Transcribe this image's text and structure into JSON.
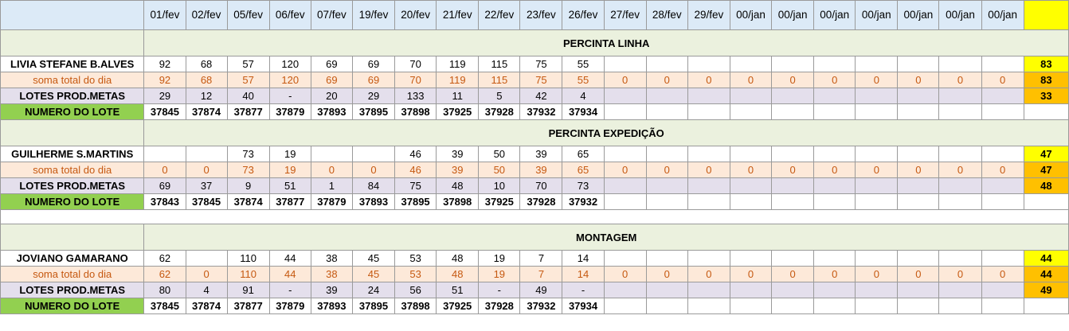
{
  "header": {
    "dates": [
      "01/fev",
      "02/fev",
      "05/fev",
      "06/fev",
      "07/fev",
      "19/fev",
      "20/fev",
      "21/fev",
      "22/fev",
      "23/fev",
      "26/fev",
      "27/fev",
      "28/fev",
      "29/fev",
      "00/jan",
      "00/jan",
      "00/jan",
      "00/jan",
      "00/jan",
      "00/jan",
      "00/jan"
    ]
  },
  "sections": [
    {
      "title": "PERCINTA LINHA",
      "person": {
        "name": "LIVIA STEFANE B.ALVES",
        "values": [
          "92",
          "68",
          "57",
          "120",
          "69",
          "69",
          "70",
          "119",
          "115",
          "75",
          "55",
          "",
          "",
          "",
          "",
          "",
          "",
          "",
          "",
          "",
          ""
        ],
        "total": "83"
      },
      "soma": {
        "label": "soma total  do dia",
        "values": [
          "92",
          "68",
          "57",
          "120",
          "69",
          "69",
          "70",
          "119",
          "115",
          "75",
          "55",
          "0",
          "0",
          "0",
          "0",
          "0",
          "0",
          "0",
          "0",
          "0",
          "0"
        ],
        "total": "83"
      },
      "lotes": {
        "label": "LOTES PROD.METAS",
        "values": [
          "29",
          "12",
          "40",
          "-",
          "20",
          "29",
          "133",
          "11",
          "5",
          "42",
          "4",
          "",
          "",
          "",
          "",
          "",
          "",
          "",
          "",
          "",
          ""
        ],
        "total": "33"
      },
      "numero": {
        "label": "NUMERO DO LOTE",
        "values": [
          "37845",
          "37874",
          "37877",
          "37879",
          "37893",
          "37895",
          "37898",
          "37925",
          "37928",
          "37932",
          "37934",
          "",
          "",
          "",
          "",
          "",
          "",
          "",
          "",
          "",
          ""
        ],
        "total": ""
      }
    },
    {
      "title": "PERCINTA EXPEDIÇÃO",
      "person": {
        "name": "GUILHERME S.MARTINS",
        "values": [
          "",
          "",
          "73",
          "19",
          "",
          "",
          "46",
          "39",
          "50",
          "39",
          "65",
          "",
          "",
          "",
          "",
          "",
          "",
          "",
          "",
          "",
          ""
        ],
        "total": "47"
      },
      "soma": {
        "label": "soma total  do dia",
        "values": [
          "0",
          "0",
          "73",
          "19",
          "0",
          "0",
          "46",
          "39",
          "50",
          "39",
          "65",
          "0",
          "0",
          "0",
          "0",
          "0",
          "0",
          "0",
          "0",
          "0",
          "0"
        ],
        "total": "47"
      },
      "lotes": {
        "label": "LOTES PROD.METAS",
        "values": [
          "69",
          "37",
          "9",
          "51",
          "1",
          "84",
          "75",
          "48",
          "10",
          "70",
          "73",
          "",
          "",
          "",
          "",
          "",
          "",
          "",
          "",
          "",
          ""
        ],
        "total": "48"
      },
      "numero": {
        "label": "NUMERO DO LOTE",
        "values": [
          "37843",
          "37845",
          "37874",
          "37877",
          "37879",
          "37893",
          "37895",
          "37898",
          "37925",
          "37928",
          "37932",
          "",
          "",
          "",
          "",
          "",
          "",
          "",
          "",
          "",
          ""
        ],
        "total": ""
      }
    },
    {
      "title": "MONTAGEM",
      "person": {
        "name": "JOVIANO GAMARANO",
        "values": [
          "62",
          "",
          "110",
          "44",
          "38",
          "45",
          "53",
          "48",
          "19",
          "7",
          "14",
          "",
          "",
          "",
          "",
          "",
          "",
          "",
          "",
          "",
          ""
        ],
        "total": "44"
      },
      "soma": {
        "label": "soma total  do dia",
        "values": [
          "62",
          "0",
          "110",
          "44",
          "38",
          "45",
          "53",
          "48",
          "19",
          "7",
          "14",
          "0",
          "0",
          "0",
          "0",
          "0",
          "0",
          "0",
          "0",
          "0",
          "0"
        ],
        "total": "44"
      },
      "lotes": {
        "label": "LOTES PROD.METAS",
        "values": [
          "80",
          "4",
          "91",
          "-",
          "39",
          "24",
          "56",
          "51",
          "-",
          "49",
          "-",
          "",
          "",
          "",
          "",
          "",
          "",
          "",
          "",
          "",
          ""
        ],
        "total": "49"
      },
      "numero": {
        "label": "NUMERO DO LOTE",
        "values": [
          "37845",
          "37874",
          "37877",
          "37879",
          "37893",
          "37895",
          "37898",
          "37925",
          "37928",
          "37932",
          "37934",
          "",
          "",
          "",
          "",
          "",
          "",
          "",
          "",
          "",
          ""
        ],
        "total": ""
      }
    }
  ],
  "colors": {
    "header_bg": "#dceaf7",
    "section_bg": "#ebf1de",
    "soma_bg": "#fde9d9",
    "soma_text": "#c65911",
    "lotes_bg": "#e4dfec",
    "numero_label_bg": "#92d050",
    "total_yellow": "#ffff00",
    "total_orange": "#ffc000"
  }
}
